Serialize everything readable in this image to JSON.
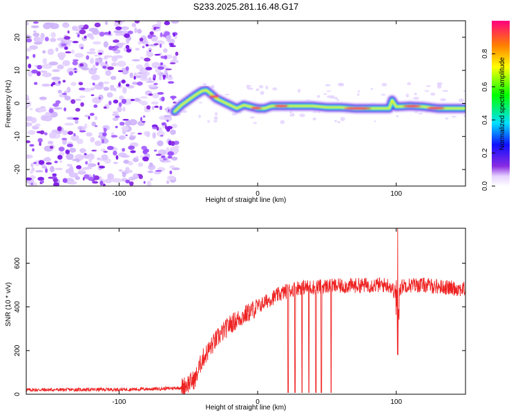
{
  "title": "S233.2025.281.16.48.G17",
  "colors": {
    "snr_line": "#ee2222",
    "axis": "#000000"
  },
  "chart_data": [
    {
      "type": "heatmap",
      "name": "spectrogram",
      "xlabel": "Height of straight line (km)",
      "ylabel": "Frequency (Hz)",
      "xlim": [
        -167,
        150
      ],
      "ylim": [
        -25,
        25
      ],
      "xticks": [
        -100,
        0,
        100
      ],
      "yticks": [
        -20,
        -10,
        0,
        10,
        20
      ],
      "noise_region_x": [
        -167,
        -58
      ],
      "ridge": {
        "x": [
          -60,
          -55,
          -50,
          -45,
          -40,
          -37,
          -34,
          -30,
          -25,
          -20,
          -15,
          -10,
          -5,
          0,
          5,
          10,
          20,
          30,
          40,
          50,
          60,
          70,
          80,
          90,
          95,
          97,
          100,
          110,
          120,
          130,
          140,
          150
        ],
        "freq": [
          -2.5,
          -0.5,
          1.0,
          2.5,
          3.8,
          4.0,
          3.0,
          1.5,
          0.5,
          -0.5,
          -1.5,
          -0.5,
          -1.0,
          -1.5,
          -1.5,
          -0.8,
          -0.8,
          -0.8,
          -0.8,
          -1.2,
          -1.2,
          -1.5,
          -1.5,
          -1.5,
          -1.5,
          1.0,
          -1.0,
          -0.8,
          -1.0,
          -1.5,
          -1.5,
          -1.5
        ]
      },
      "colorbar": {
        "label": "Normalized spectral amplitude",
        "range": [
          0,
          1
        ],
        "ticks": [
          0.0,
          0.2,
          0.4,
          0.6,
          0.8
        ],
        "tick_labels": [
          "0.0",
          "0.2",
          "0.4",
          "0.6",
          "0.8"
        ]
      }
    },
    {
      "type": "line",
      "name": "snr",
      "xlabel": "Height of straight line (km)",
      "ylabel": "SNR (10 * v/v)",
      "xlim": [
        -167,
        150
      ],
      "ylim": [
        0,
        760
      ],
      "xticks": [
        -100,
        0,
        100
      ],
      "yticks": [
        0,
        200,
        400,
        600
      ],
      "envelope": {
        "x": [
          -167,
          -100,
          -70,
          -55,
          -50,
          -45,
          -40,
          -30,
          -20,
          -10,
          0,
          10,
          20,
          30,
          40,
          50,
          60,
          80,
          95,
          100,
          105,
          120,
          150
        ],
        "y": [
          20,
          22,
          25,
          30,
          50,
          70,
          160,
          250,
          320,
          360,
          400,
          440,
          470,
          490,
          490,
          495,
          495,
          500,
          500,
          460,
          500,
          500,
          480
        ]
      },
      "dropouts_x": [
        22,
        27,
        32,
        37,
        42,
        46,
        53
      ],
      "spike": {
        "x": 101,
        "max": 760,
        "min": 180
      }
    }
  ]
}
